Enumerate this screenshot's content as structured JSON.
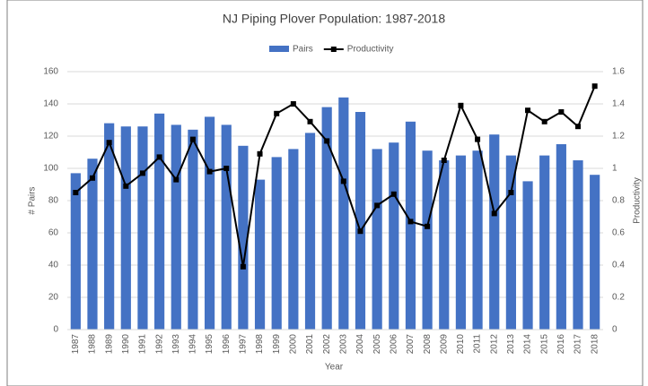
{
  "chart_data": {
    "type": "bar_line",
    "title": "NJ Piping Plover Population: 1987-2018",
    "x_label": "Year",
    "y_label": "# Pairs",
    "y2_label": "Productivity",
    "categories": [
      "1987",
      "1988",
      "1989",
      "1990",
      "1991",
      "1992",
      "1993",
      "1994",
      "1995",
      "1996",
      "1997",
      "1998",
      "1999",
      "2000",
      "2001",
      "2002",
      "2003",
      "2004",
      "2005",
      "2006",
      "2007",
      "2008",
      "2009",
      "2010",
      "2011",
      "2012",
      "2013",
      "2014",
      "2015",
      "2016",
      "2017",
      "2018"
    ],
    "series": [
      {
        "name": "Pairs",
        "type": "bar",
        "color": "#4472c4",
        "values": [
          97,
          106,
          128,
          126,
          126,
          134,
          127,
          124,
          132,
          127,
          114,
          93,
          107,
          112,
          122,
          138,
          144,
          135,
          112,
          116,
          129,
          111,
          105,
          108,
          111,
          121,
          108,
          92,
          108,
          115,
          105,
          96
        ]
      },
      {
        "name": "Productivity",
        "type": "line",
        "axis": "y2",
        "color": "#000000",
        "values": [
          0.85,
          0.94,
          1.16,
          0.89,
          0.97,
          1.07,
          0.93,
          1.18,
          0.98,
          1.0,
          0.39,
          1.09,
          1.34,
          1.4,
          1.29,
          1.17,
          0.92,
          0.61,
          0.77,
          0.84,
          0.67,
          0.64,
          1.05,
          1.39,
          1.18,
          0.72,
          0.85,
          1.36,
          1.29,
          1.35,
          1.26,
          1.51
        ]
      }
    ],
    "ylim": [
      0,
      160
    ],
    "yticks": [
      0,
      20,
      40,
      60,
      80,
      100,
      120,
      140,
      160
    ],
    "y2lim": [
      0,
      1.6
    ],
    "y2ticks": [
      0,
      0.2,
      0.4,
      0.6,
      0.8,
      1,
      1.2,
      1.4,
      1.6
    ],
    "legend": "top"
  }
}
